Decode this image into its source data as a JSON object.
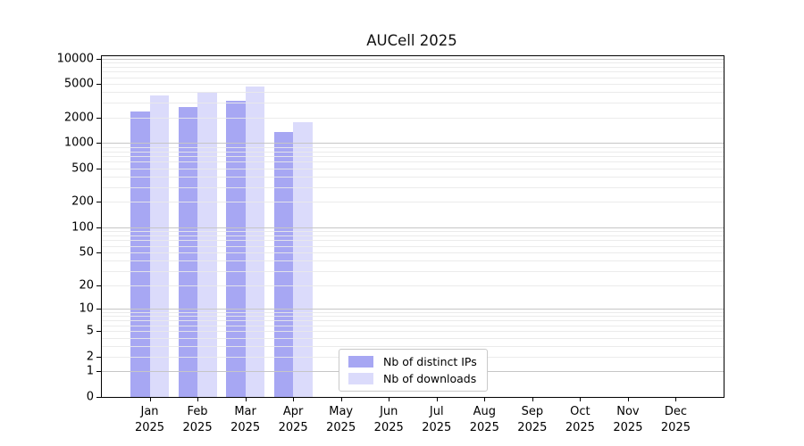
{
  "title": "AUCell 2025",
  "colors": {
    "distinct_ips": "#a7a7f3",
    "downloads": "#dbdbfb",
    "grid_major": "#c6c6c6",
    "grid_minor": "#e9e9e9",
    "axis_line": "#000000",
    "legend_border": "#c9c9c9",
    "background": "#ffffff",
    "text": "#000000"
  },
  "legend": {
    "items": [
      {
        "label": "Nb of distinct IPs",
        "color": "#a7a7f3"
      },
      {
        "label": "Nb of downloads",
        "color": "#dbdbfb"
      }
    ]
  },
  "y_axis": {
    "scale": "symlog",
    "tick_values": [
      0,
      1,
      2,
      5,
      10,
      20,
      50,
      100,
      200,
      500,
      1000,
      2000,
      5000,
      10000
    ],
    "max": 10000
  },
  "x_axis": {
    "labels": [
      {
        "month": "Jan",
        "year": "2025"
      },
      {
        "month": "Feb",
        "year": "2025"
      },
      {
        "month": "Mar",
        "year": "2025"
      },
      {
        "month": "Apr",
        "year": "2025"
      },
      {
        "month": "May",
        "year": "2025"
      },
      {
        "month": "Jun",
        "year": "2025"
      },
      {
        "month": "Jul",
        "year": "2025"
      },
      {
        "month": "Aug",
        "year": "2025"
      },
      {
        "month": "Sep",
        "year": "2025"
      },
      {
        "month": "Oct",
        "year": "2025"
      },
      {
        "month": "Nov",
        "year": "2025"
      },
      {
        "month": "Dec",
        "year": "2025"
      }
    ]
  },
  "chart_data": {
    "type": "bar",
    "title": "AUCell 2025",
    "categories": [
      "Jan 2025",
      "Feb 2025",
      "Mar 2025",
      "Apr 2025",
      "May 2025",
      "Jun 2025",
      "Jul 2025",
      "Aug 2025",
      "Sep 2025",
      "Oct 2025",
      "Nov 2025",
      "Dec 2025"
    ],
    "series": [
      {
        "name": "Nb of distinct IPs",
        "color": "#a7a7f3",
        "values": [
          2350,
          2650,
          3150,
          1340,
          null,
          null,
          null,
          null,
          null,
          null,
          null,
          null
        ]
      },
      {
        "name": "Nb of downloads",
        "color": "#dbdbfb",
        "values": [
          3650,
          4000,
          4700,
          1780,
          null,
          null,
          null,
          null,
          null,
          null,
          null,
          null
        ]
      }
    ],
    "yscale": "symlog",
    "ylim": [
      0,
      10000
    ],
    "y_ticks": [
      0,
      1,
      2,
      5,
      10,
      20,
      50,
      100,
      200,
      500,
      1000,
      2000,
      5000,
      10000
    ],
    "grid": true,
    "legend_position": "lower center inside"
  }
}
